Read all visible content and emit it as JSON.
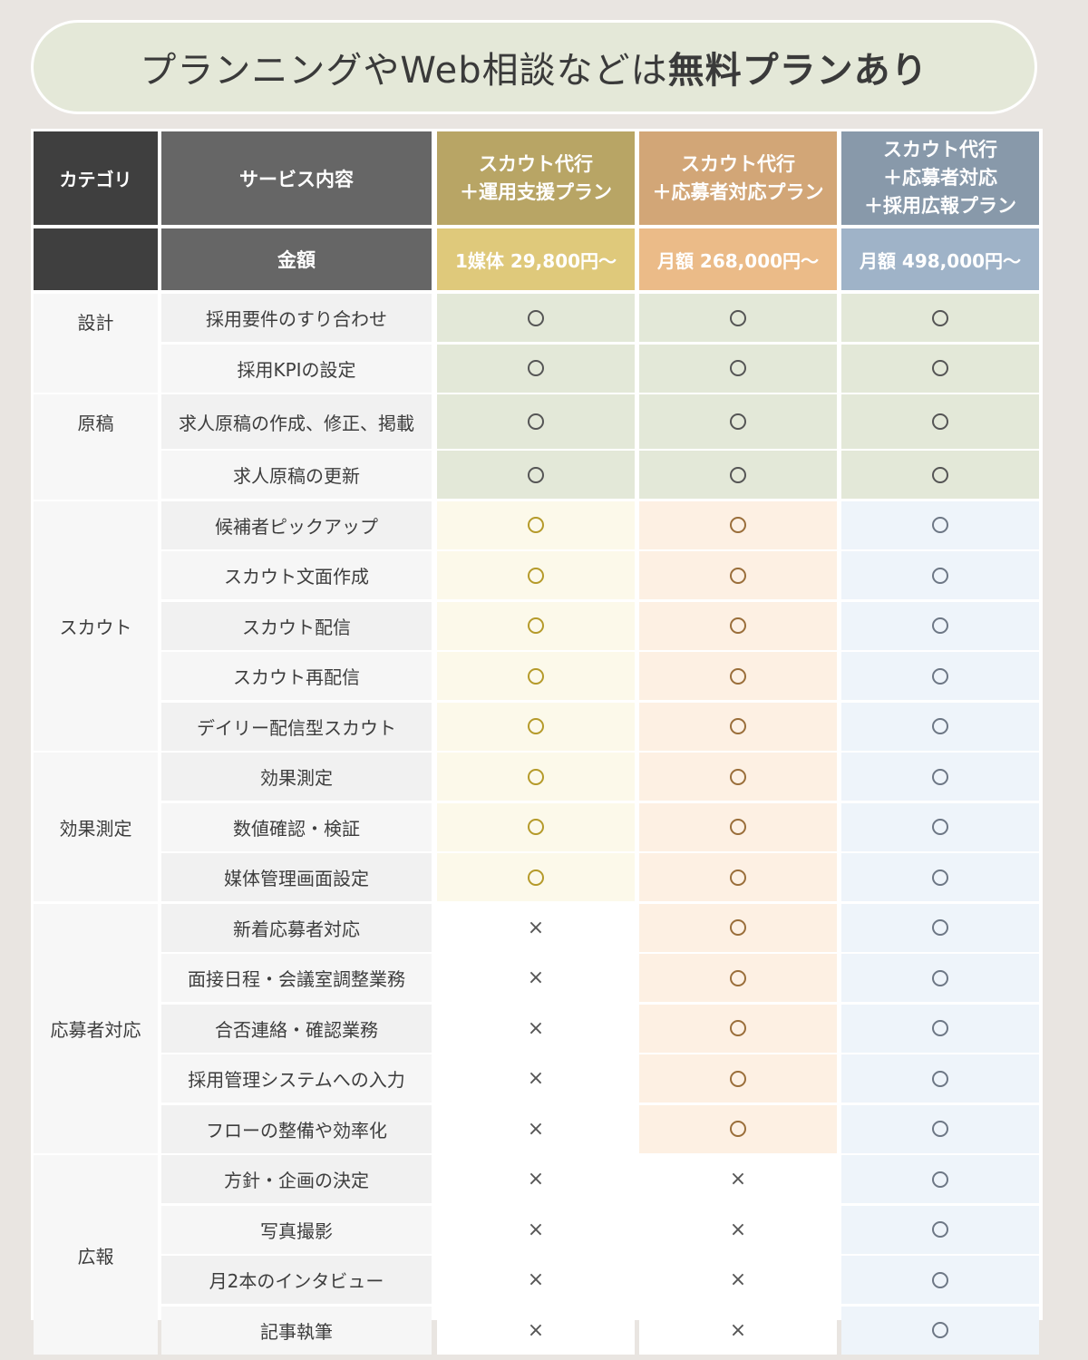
{
  "title": {
    "normal": "プランニングやWeb相談などは",
    "bold": "無料プランあり"
  },
  "header": {
    "category": "カテゴリ",
    "service": "サービス内容",
    "price_label": "金額",
    "plans": [
      {
        "lines": [
          "スカウト代行",
          "＋運用支援プラン"
        ],
        "price": "1媒体 29,800円～"
      },
      {
        "lines": [
          "スカウト代行",
          "＋応募者対応プラン"
        ],
        "price": "月額 268,000円～"
      },
      {
        "lines": [
          "スカウト代行",
          "＋応募者対応",
          "＋採用広報プラン"
        ],
        "price": "月額 498,000円～"
      }
    ]
  },
  "symbols": {
    "yes": "○",
    "no": "×"
  },
  "colors": {
    "green_cell": "#e3e8d8",
    "plan1_cell": "#fcf9ea",
    "plan2_cell": "#fdf0e3",
    "plan3_cell": "#eef4fa",
    "plan1_circle": "#b59a2a",
    "plan2_circle": "#9a6e3a",
    "plan3_circle": "#6d7785",
    "neutral_circle": "#555555"
  },
  "groups": [
    {
      "category": "設計",
      "rows": [
        {
          "service": "採用要件のすり合わせ",
          "marks": [
            "yes",
            "yes",
            "yes"
          ]
        },
        {
          "service": "採用KPIの設定",
          "marks": [
            "yes",
            "yes",
            "yes"
          ]
        }
      ]
    },
    {
      "category": "原稿",
      "rows": [
        {
          "service": "求人原稿の作成、修正、掲載",
          "marks": [
            "yes",
            "yes",
            "yes"
          ]
        },
        {
          "service": "求人原稿の更新",
          "marks": [
            "yes",
            "yes",
            "yes"
          ]
        }
      ]
    },
    {
      "category": "スカウト",
      "rows": [
        {
          "service": "候補者ピックアップ",
          "marks": [
            "yes",
            "yes",
            "yes"
          ]
        },
        {
          "service": "スカウト文面作成",
          "marks": [
            "yes",
            "yes",
            "yes"
          ]
        },
        {
          "service": "スカウト配信",
          "marks": [
            "yes",
            "yes",
            "yes"
          ]
        },
        {
          "service": "スカウト再配信",
          "marks": [
            "yes",
            "yes",
            "yes"
          ]
        },
        {
          "service": "デイリー配信型スカウト",
          "marks": [
            "yes",
            "yes",
            "yes"
          ]
        }
      ]
    },
    {
      "category": "効果測定",
      "rows": [
        {
          "service": "効果測定",
          "marks": [
            "yes",
            "yes",
            "yes"
          ]
        },
        {
          "service": "数値確認・検証",
          "marks": [
            "yes",
            "yes",
            "yes"
          ]
        },
        {
          "service": "媒体管理画面設定",
          "marks": [
            "yes",
            "yes",
            "yes"
          ]
        }
      ]
    },
    {
      "category": "応募者対応",
      "rows": [
        {
          "service": "新着応募者対応",
          "marks": [
            "no",
            "yes",
            "yes"
          ]
        },
        {
          "service": "面接日程・会議室調整業務",
          "marks": [
            "no",
            "yes",
            "yes"
          ]
        },
        {
          "service": "合否連絡・確認業務",
          "marks": [
            "no",
            "yes",
            "yes"
          ]
        },
        {
          "service": "採用管理システムへの入力",
          "marks": [
            "no",
            "yes",
            "yes"
          ]
        },
        {
          "service": "フローの整備や効率化",
          "marks": [
            "no",
            "yes",
            "yes"
          ]
        }
      ]
    },
    {
      "category": "広報",
      "rows": [
        {
          "service": "方針・企画の決定",
          "marks": [
            "no",
            "no",
            "yes"
          ]
        },
        {
          "service": "写真撮影",
          "marks": [
            "no",
            "no",
            "yes"
          ]
        },
        {
          "service": "月2本のインタビュー",
          "marks": [
            "no",
            "no",
            "yes"
          ]
        },
        {
          "service": "記事執筆",
          "marks": [
            "no",
            "no",
            "yes"
          ]
        }
      ]
    }
  ]
}
